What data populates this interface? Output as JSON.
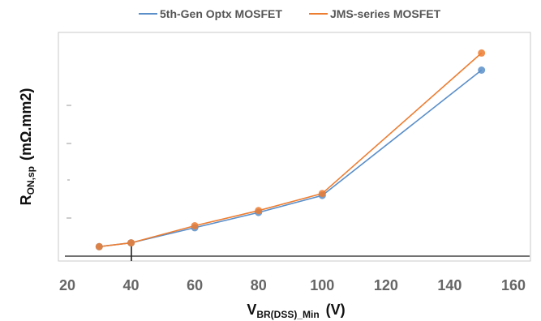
{
  "chart_data": {
    "type": "line",
    "title": "",
    "xlabel": {
      "main": "V",
      "sub": "BR(DSS)_Min",
      "unit": "(V)"
    },
    "ylabel": {
      "main": "R",
      "sub": "ON,sp",
      "unit": "(mΩ.mm2)"
    },
    "xlim": [
      20,
      160
    ],
    "x_ticks": [
      "20",
      "40",
      "60",
      "80",
      "100",
      "120",
      "140",
      "160"
    ],
    "y_ticks_labeled": false,
    "grid": false,
    "legend_position": "top",
    "series": [
      {
        "name": "5th-Gen  Optx MOSFET",
        "color": "#5b8fc9",
        "points": [
          [
            30,
            0.05
          ],
          [
            40,
            0.07
          ],
          [
            60,
            0.15
          ],
          [
            80,
            0.23
          ],
          [
            100,
            0.32
          ],
          [
            150,
            0.98
          ]
        ]
      },
      {
        "name": "JMS-series MOSFET",
        "color": "#ed7d31",
        "points": [
          [
            30,
            0.05
          ],
          [
            40,
            0.07
          ],
          [
            60,
            0.16
          ],
          [
            80,
            0.24
          ],
          [
            100,
            0.33
          ],
          [
            150,
            1.07
          ]
        ]
      }
    ]
  }
}
